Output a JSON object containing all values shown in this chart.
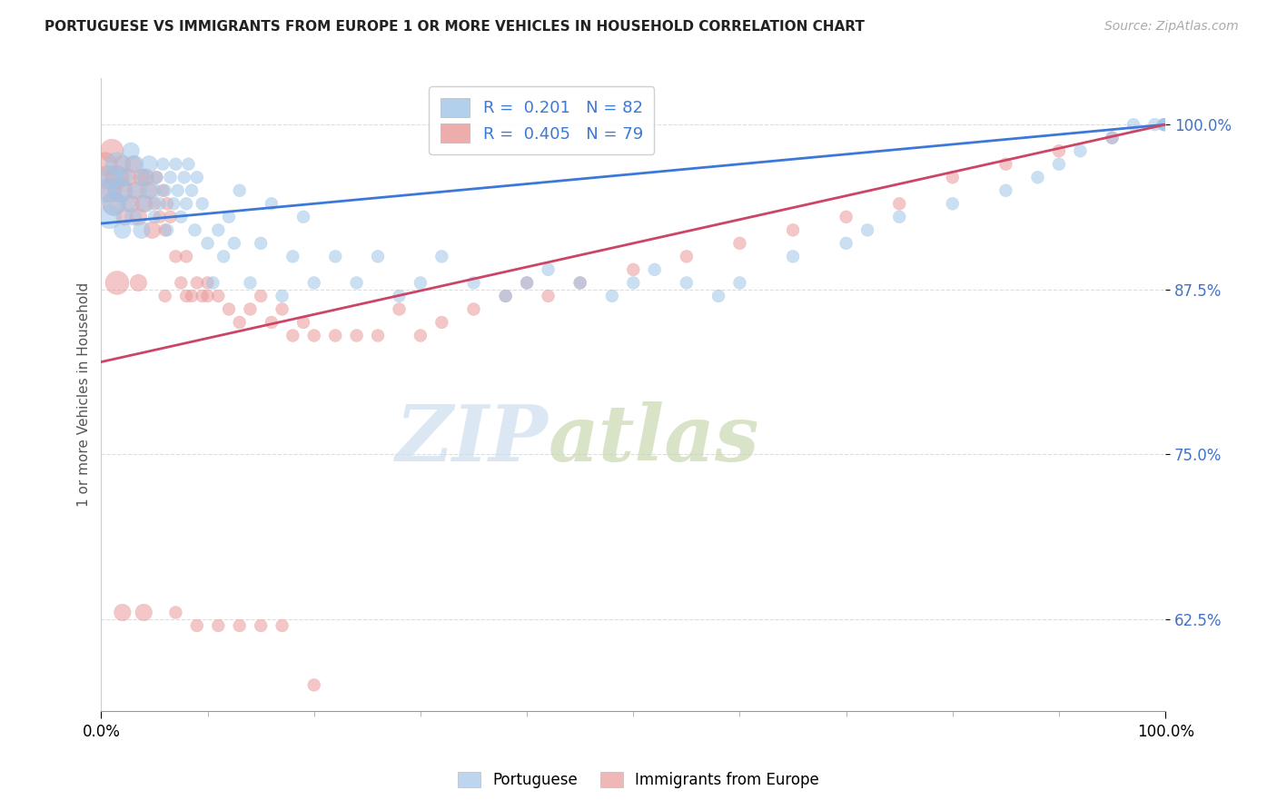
{
  "title": "PORTUGUESE VS IMMIGRANTS FROM EUROPE 1 OR MORE VEHICLES IN HOUSEHOLD CORRELATION CHART",
  "source": "Source: ZipAtlas.com",
  "ylabel": "1 or more Vehicles in Household",
  "y_min": 0.555,
  "y_max": 1.035,
  "x_min": 0.0,
  "x_max": 1.0,
  "y_ticks": [
    0.625,
    0.75,
    0.875,
    1.0
  ],
  "y_tick_labels": [
    "62.5%",
    "75.0%",
    "87.5%",
    "100.0%"
  ],
  "x_tick_labels": [
    "0.0%",
    "100.0%"
  ],
  "blue_R": 0.201,
  "blue_N": 82,
  "pink_R": 0.405,
  "pink_N": 79,
  "blue_color": "#9fc5e8",
  "pink_color": "#ea9999",
  "blue_line_color": "#3c78d8",
  "pink_line_color": "#cc4466",
  "legend_label_blue": "Portuguese",
  "legend_label_pink": "Immigrants from Europe",
  "background_color": "#ffffff",
  "blue_scatter_x": [
    0.005,
    0.008,
    0.01,
    0.012,
    0.015,
    0.018,
    0.02,
    0.022,
    0.025,
    0.028,
    0.03,
    0.032,
    0.035,
    0.038,
    0.04,
    0.042,
    0.045,
    0.048,
    0.05,
    0.052,
    0.055,
    0.058,
    0.06,
    0.062,
    0.065,
    0.068,
    0.07,
    0.072,
    0.075,
    0.078,
    0.08,
    0.082,
    0.085,
    0.088,
    0.09,
    0.095,
    0.1,
    0.105,
    0.11,
    0.115,
    0.12,
    0.125,
    0.13,
    0.14,
    0.15,
    0.16,
    0.17,
    0.18,
    0.19,
    0.2,
    0.22,
    0.24,
    0.26,
    0.28,
    0.3,
    0.32,
    0.35,
    0.38,
    0.4,
    0.42,
    0.45,
    0.48,
    0.5,
    0.52,
    0.55,
    0.58,
    0.6,
    0.65,
    0.7,
    0.72,
    0.75,
    0.8,
    0.85,
    0.88,
    0.9,
    0.92,
    0.95,
    0.97,
    0.99,
    0.998,
    0.999,
    1.0
  ],
  "blue_scatter_y": [
    0.95,
    0.93,
    0.96,
    0.94,
    0.97,
    0.95,
    0.92,
    0.96,
    0.94,
    0.98,
    0.93,
    0.97,
    0.95,
    0.92,
    0.96,
    0.94,
    0.97,
    0.95,
    0.93,
    0.96,
    0.94,
    0.97,
    0.95,
    0.92,
    0.96,
    0.94,
    0.97,
    0.95,
    0.93,
    0.96,
    0.94,
    0.97,
    0.95,
    0.92,
    0.96,
    0.94,
    0.91,
    0.88,
    0.92,
    0.9,
    0.93,
    0.91,
    0.95,
    0.88,
    0.91,
    0.94,
    0.87,
    0.9,
    0.93,
    0.88,
    0.9,
    0.88,
    0.9,
    0.87,
    0.88,
    0.9,
    0.88,
    0.87,
    0.88,
    0.89,
    0.88,
    0.87,
    0.88,
    0.89,
    0.88,
    0.87,
    0.88,
    0.9,
    0.91,
    0.92,
    0.93,
    0.94,
    0.95,
    0.96,
    0.97,
    0.98,
    0.99,
    1.0,
    1.0,
    1.0,
    1.0,
    1.0
  ],
  "blue_scatter_sizes": [
    120,
    120,
    120,
    120,
    120,
    120,
    120,
    120,
    120,
    120,
    120,
    120,
    120,
    120,
    120,
    120,
    120,
    120,
    120,
    120,
    120,
    120,
    120,
    120,
    120,
    120,
    120,
    120,
    120,
    120,
    120,
    120,
    120,
    120,
    120,
    120,
    120,
    120,
    120,
    120,
    120,
    120,
    120,
    120,
    120,
    120,
    120,
    120,
    120,
    120,
    120,
    120,
    120,
    120,
    120,
    120,
    120,
    120,
    120,
    120,
    120,
    120,
    120,
    120,
    120,
    120,
    120,
    120,
    120,
    120,
    120,
    120,
    120,
    120,
    120,
    120,
    120,
    120,
    120,
    120,
    120,
    120
  ],
  "pink_scatter_x": [
    0.004,
    0.006,
    0.008,
    0.01,
    0.012,
    0.015,
    0.018,
    0.02,
    0.022,
    0.025,
    0.028,
    0.03,
    0.032,
    0.035,
    0.038,
    0.04,
    0.042,
    0.045,
    0.048,
    0.05,
    0.052,
    0.055,
    0.058,
    0.06,
    0.062,
    0.065,
    0.07,
    0.075,
    0.08,
    0.085,
    0.09,
    0.095,
    0.1,
    0.11,
    0.12,
    0.13,
    0.14,
    0.15,
    0.16,
    0.17,
    0.18,
    0.19,
    0.2,
    0.22,
    0.24,
    0.26,
    0.28,
    0.3,
    0.32,
    0.35,
    0.38,
    0.4,
    0.42,
    0.45,
    0.5,
    0.55,
    0.6,
    0.65,
    0.7,
    0.75,
    0.8,
    0.85,
    0.9,
    0.95,
    1.0,
    0.015,
    0.035,
    0.06,
    0.08,
    0.1,
    0.02,
    0.04,
    0.07,
    0.09,
    0.11,
    0.13,
    0.15,
    0.17,
    0.2
  ],
  "pink_scatter_y": [
    0.97,
    0.96,
    0.95,
    0.98,
    0.94,
    0.96,
    0.95,
    0.97,
    0.93,
    0.96,
    0.94,
    0.97,
    0.95,
    0.93,
    0.96,
    0.94,
    0.96,
    0.95,
    0.92,
    0.94,
    0.96,
    0.93,
    0.95,
    0.92,
    0.94,
    0.93,
    0.9,
    0.88,
    0.9,
    0.87,
    0.88,
    0.87,
    0.88,
    0.87,
    0.86,
    0.85,
    0.86,
    0.87,
    0.85,
    0.86,
    0.84,
    0.85,
    0.84,
    0.84,
    0.84,
    0.84,
    0.86,
    0.84,
    0.85,
    0.86,
    0.87,
    0.88,
    0.87,
    0.88,
    0.89,
    0.9,
    0.91,
    0.92,
    0.93,
    0.94,
    0.96,
    0.97,
    0.98,
    0.99,
    1.0,
    0.88,
    0.88,
    0.87,
    0.87,
    0.87,
    0.63,
    0.63,
    0.63,
    0.62,
    0.62,
    0.62,
    0.62,
    0.62,
    0.575
  ],
  "blue_line_x0": 0.0,
  "blue_line_y0": 0.925,
  "blue_line_x1": 1.0,
  "blue_line_y1": 1.0,
  "pink_line_x0": 0.0,
  "pink_line_y0": 0.82,
  "pink_line_x1": 1.0,
  "pink_line_y1": 1.0
}
